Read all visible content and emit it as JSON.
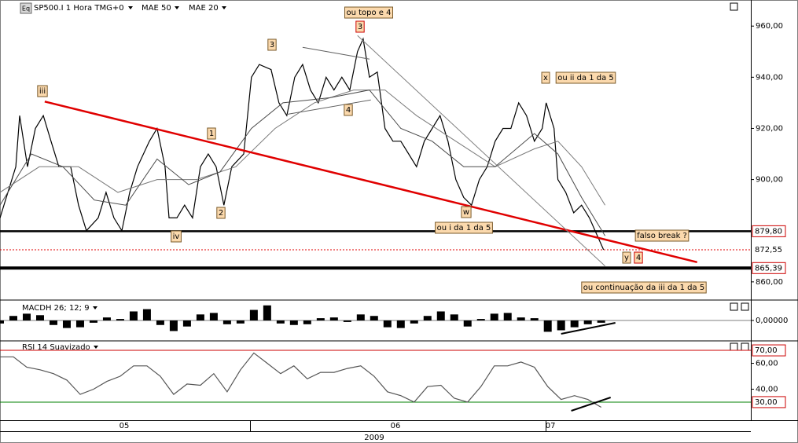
{
  "chart_data": [
    {
      "type": "line",
      "title": "SP500.I 1 Hora TMG+0",
      "symbol_icon": "Eq",
      "xlim": [
        0,
        56.2
      ],
      "xticks": [
        {
          "value": 9.3,
          "label": "05"
        },
        {
          "value": 29.6,
          "label": "06"
        },
        {
          "value": 41.2,
          "label": "07"
        }
      ],
      "xlabel": "2009",
      "ylim": [
        853.2,
        970.2
      ],
      "yticks": [
        {
          "value": 860,
          "label": "860,00"
        },
        {
          "value": 900,
          "label": "900,00"
        },
        {
          "value": 920,
          "label": "920,00"
        },
        {
          "value": 940,
          "label": "940,00"
        },
        {
          "value": 960,
          "label": "960,00"
        }
      ],
      "series": [
        {
          "color": "#000000",
          "x": [
            0,
            1.18,
            1.47,
            2.06,
            2.65,
            3.24,
            3.82,
            4.41,
            5.29,
            5.88,
            6.47,
            7.35,
            7.94,
            8.53,
            9.12,
            9.71,
            10.29,
            11.18,
            11.76,
            12.35,
            12.65,
            13.24,
            13.82,
            14.41,
            15,
            15.59,
            16.18,
            16.76,
            17.35,
            18.24,
            18.82,
            19.41,
            20.29,
            20.88,
            21.47,
            22.06,
            22.65,
            23.24,
            23.82,
            24.41,
            25,
            25.59,
            26.18,
            26.76,
            27.18,
            27.65,
            28.24,
            28.82,
            29.41,
            30,
            30.59,
            31.18,
            31.76,
            32.35,
            32.94,
            33.53,
            34.12,
            34.71,
            35.29,
            35.88,
            36.47,
            37.06,
            37.65,
            38.24,
            38.82,
            39.41,
            40,
            40.59,
            40.88,
            41.47,
            41.76,
            42.35,
            42.94,
            43.53,
            44.12,
            44.71,
            45.18
          ],
          "values": [
            885,
            905,
            925,
            905,
            920,
            925,
            915,
            905,
            905,
            890,
            880,
            885,
            895,
            885,
            880,
            895,
            905,
            915,
            920,
            905,
            885,
            885,
            890,
            885,
            905,
            910,
            905,
            890,
            905,
            910,
            940,
            945,
            943,
            930,
            925,
            940,
            945,
            935,
            930,
            940,
            935,
            940,
            935,
            950,
            955,
            940,
            942,
            920,
            915,
            915,
            910,
            905,
            915,
            920,
            925,
            915,
            900,
            893,
            890,
            900,
            905,
            915,
            920,
            920,
            930,
            925,
            915,
            920,
            930,
            920,
            900,
            895,
            887,
            890,
            885,
            878,
            872.55
          ]
        },
        {
          "name": "MAE 50",
          "color": "#7a7a7a",
          "x": [
            0,
            2.94,
            5.88,
            8.82,
            11.76,
            14.71,
            17.65,
            20.59,
            23.53,
            26.47,
            28.82,
            31.18,
            34.12,
            37.06,
            40,
            41.76,
            43.53,
            45.29
          ],
          "values": [
            895,
            905,
            905,
            895,
            900,
            900,
            905,
            920,
            930,
            935,
            935,
            925,
            915,
            905,
            912,
            915,
            905,
            890
          ]
        },
        {
          "name": "MAE 20",
          "color": "#4a4a4a",
          "x": [
            0,
            2.35,
            4.71,
            7.06,
            9.41,
            11.76,
            14.12,
            16.47,
            18.82,
            21.18,
            24.71,
            27.65,
            30,
            32.35,
            34.71,
            37.06,
            40,
            41.76,
            43.53,
            45.29
          ],
          "values": [
            890,
            910,
            905,
            892,
            890,
            908,
            898,
            903,
            920,
            930,
            932,
            935,
            920,
            915,
            905,
            905,
            918,
            910,
            893,
            878
          ]
        }
      ],
      "levels": [
        {
          "value": 879.8,
          "label": "879,80",
          "color": "#000000"
        },
        {
          "value": 872.55,
          "label": "872,55",
          "color": "#e00000"
        },
        {
          "value": 865.39,
          "label": "865,39",
          "color": "#000000"
        }
      ],
      "lines": [
        {
          "color": "#e00000",
          "x": [
            3.35,
            52.18
          ],
          "values": [
            930.5,
            867.7
          ]
        },
        {
          "color": "#808080",
          "x": [
            26.76,
            45.29
          ],
          "values": [
            956.3,
            866.2
          ]
        },
        {
          "color": "#606060",
          "x": [
            22.65,
            27.65
          ],
          "values": [
            951.7,
            947.1
          ]
        },
        {
          "color": "#606060",
          "x": [
            21.47,
            27.76
          ],
          "values": [
            925.5,
            931.1
          ]
        }
      ],
      "annotations": [
        "ou topo e 4",
        "3",
        "3",
        "iii",
        "1",
        "2",
        "iv",
        "4",
        "x",
        "ou ii da 1 da 5",
        "w",
        "ou i da 1 da 5",
        "falso break ?",
        "y",
        "4",
        "ou continuação da iii da 1 da 5"
      ]
    },
    {
      "type": "bar",
      "title": "MACDH 26; 12; 9",
      "color": "#000000",
      "xlim": [
        0,
        56.2
      ],
      "ylim": [
        -2.5,
        2.5
      ],
      "yticks": [
        {
          "value": 0,
          "label": "0,00000"
        }
      ],
      "x": [
        0,
        1,
        2,
        3,
        4,
        5,
        6,
        7,
        8,
        9,
        10,
        11,
        12,
        13,
        14,
        15,
        16,
        17,
        18,
        19,
        20,
        21,
        22,
        23,
        24,
        25,
        26,
        27,
        28,
        29,
        30,
        31,
        32,
        33,
        34,
        35,
        36,
        37,
        38,
        39,
        40,
        41,
        42,
        43,
        44,
        45
      ],
      "values": [
        -0.4,
        0.6,
        0.9,
        0.7,
        -0.6,
        -1.0,
        -0.9,
        -0.3,
        0.4,
        0.2,
        1.2,
        1.5,
        -0.6,
        -1.4,
        -0.8,
        0.8,
        1.0,
        -0.5,
        -0.4,
        1.4,
        2.0,
        -0.4,
        -0.6,
        -0.5,
        0.3,
        0.4,
        -0.2,
        0.8,
        0.6,
        -0.9,
        -1.0,
        -0.4,
        0.6,
        1.2,
        0.8,
        -0.8,
        0.2,
        0.9,
        1.0,
        0.4,
        0.3,
        -1.5,
        -1.3,
        -0.9,
        -0.5,
        -0.3
      ],
      "lines": [
        {
          "color": "#000000",
          "x": [
            42,
            46.06
          ],
          "values": [
            -1.77,
            -0.31
          ]
        }
      ]
    },
    {
      "type": "line",
      "title": "RSI 14 Suavizado",
      "xlim": [
        0,
        56.2
      ],
      "ylim": [
        16,
        75.5
      ],
      "yticks": [
        {
          "value": 40,
          "label": "40,00"
        },
        {
          "value": 60,
          "label": "60,00"
        }
      ],
      "levels": [
        {
          "value": 70,
          "label": "70,00",
          "color": "#cc0000"
        },
        {
          "value": 30,
          "label": "30,00",
          "color": "#008000"
        }
      ],
      "series": [
        {
          "color": "#555555",
          "x": [
            0,
            1,
            2,
            3,
            4,
            5,
            6,
            7,
            8,
            9,
            10,
            11,
            12,
            13,
            14,
            15,
            16,
            17,
            18,
            19,
            20,
            21,
            22,
            23,
            24,
            25,
            26,
            27,
            28,
            29,
            30,
            31,
            32,
            33,
            34,
            35,
            36,
            37,
            38,
            39,
            40,
            41,
            42,
            43,
            44,
            45
          ],
          "values": [
            65,
            65,
            57,
            55,
            52,
            47,
            36,
            40,
            46,
            50,
            58,
            58,
            50,
            36,
            44,
            43,
            52,
            38,
            55,
            68,
            60,
            52,
            58,
            48,
            53,
            53,
            56,
            58,
            50,
            38,
            35,
            30,
            42,
            43,
            33,
            30,
            42,
            58,
            58,
            61,
            57,
            42,
            32,
            35,
            32,
            26
          ]
        }
      ],
      "lines": [
        {
          "color": "#000000",
          "x": [
            42.76,
            45.71
          ],
          "values": [
            23.3,
            33.6
          ]
        }
      ]
    }
  ]
}
